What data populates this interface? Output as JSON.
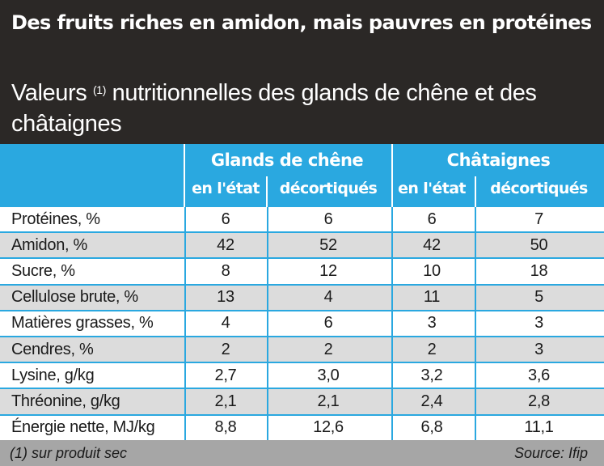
{
  "header": {
    "title": "Des fruits riches en amidon, mais pauvres en protéines",
    "subtitle_before": "Valeurs ",
    "subtitle_note": "(1)",
    "subtitle_after": " nutritionnelles des glands de chêne et des châtaignes"
  },
  "table": {
    "groups": [
      "Glands de chêne",
      "Châtaignes"
    ],
    "subheaders": [
      "en l'état",
      "décortiqués",
      "en l'état",
      "décortiqués"
    ],
    "rows": [
      {
        "label": "Protéines, %",
        "values": [
          "6",
          "6",
          "6",
          "7"
        ]
      },
      {
        "label": "Amidon, %",
        "values": [
          "42",
          "52",
          "42",
          "50"
        ]
      },
      {
        "label": "Sucre, %",
        "values": [
          "8",
          "12",
          "10",
          "18"
        ]
      },
      {
        "label": "Cellulose brute, %",
        "values": [
          "13",
          "4",
          "11",
          "5"
        ]
      },
      {
        "label": "Matières grasses, %",
        "values": [
          "4",
          "6",
          "3",
          "3"
        ]
      },
      {
        "label": "Cendres, %",
        "values": [
          "2",
          "2",
          "2",
          "3"
        ]
      },
      {
        "label": "Lysine, g/kg",
        "values": [
          "2,7",
          "3,0",
          "3,2",
          "3,6"
        ]
      },
      {
        "label": "Thréonine, g/kg",
        "values": [
          "2,1",
          "2,1",
          "2,4",
          "2,8"
        ]
      },
      {
        "label": "Énergie nette, MJ/kg",
        "values": [
          "8,8",
          "12,6",
          "6,8",
          "11,1"
        ]
      }
    ]
  },
  "footer": {
    "note": "(1) sur produit sec",
    "source": "Source: Ifip"
  },
  "colors": {
    "header_bg": "#2b2826",
    "accent_blue": "#2aa8e0",
    "row_alt": "#dcdcdc",
    "footer_bg": "#a6a6a6"
  }
}
